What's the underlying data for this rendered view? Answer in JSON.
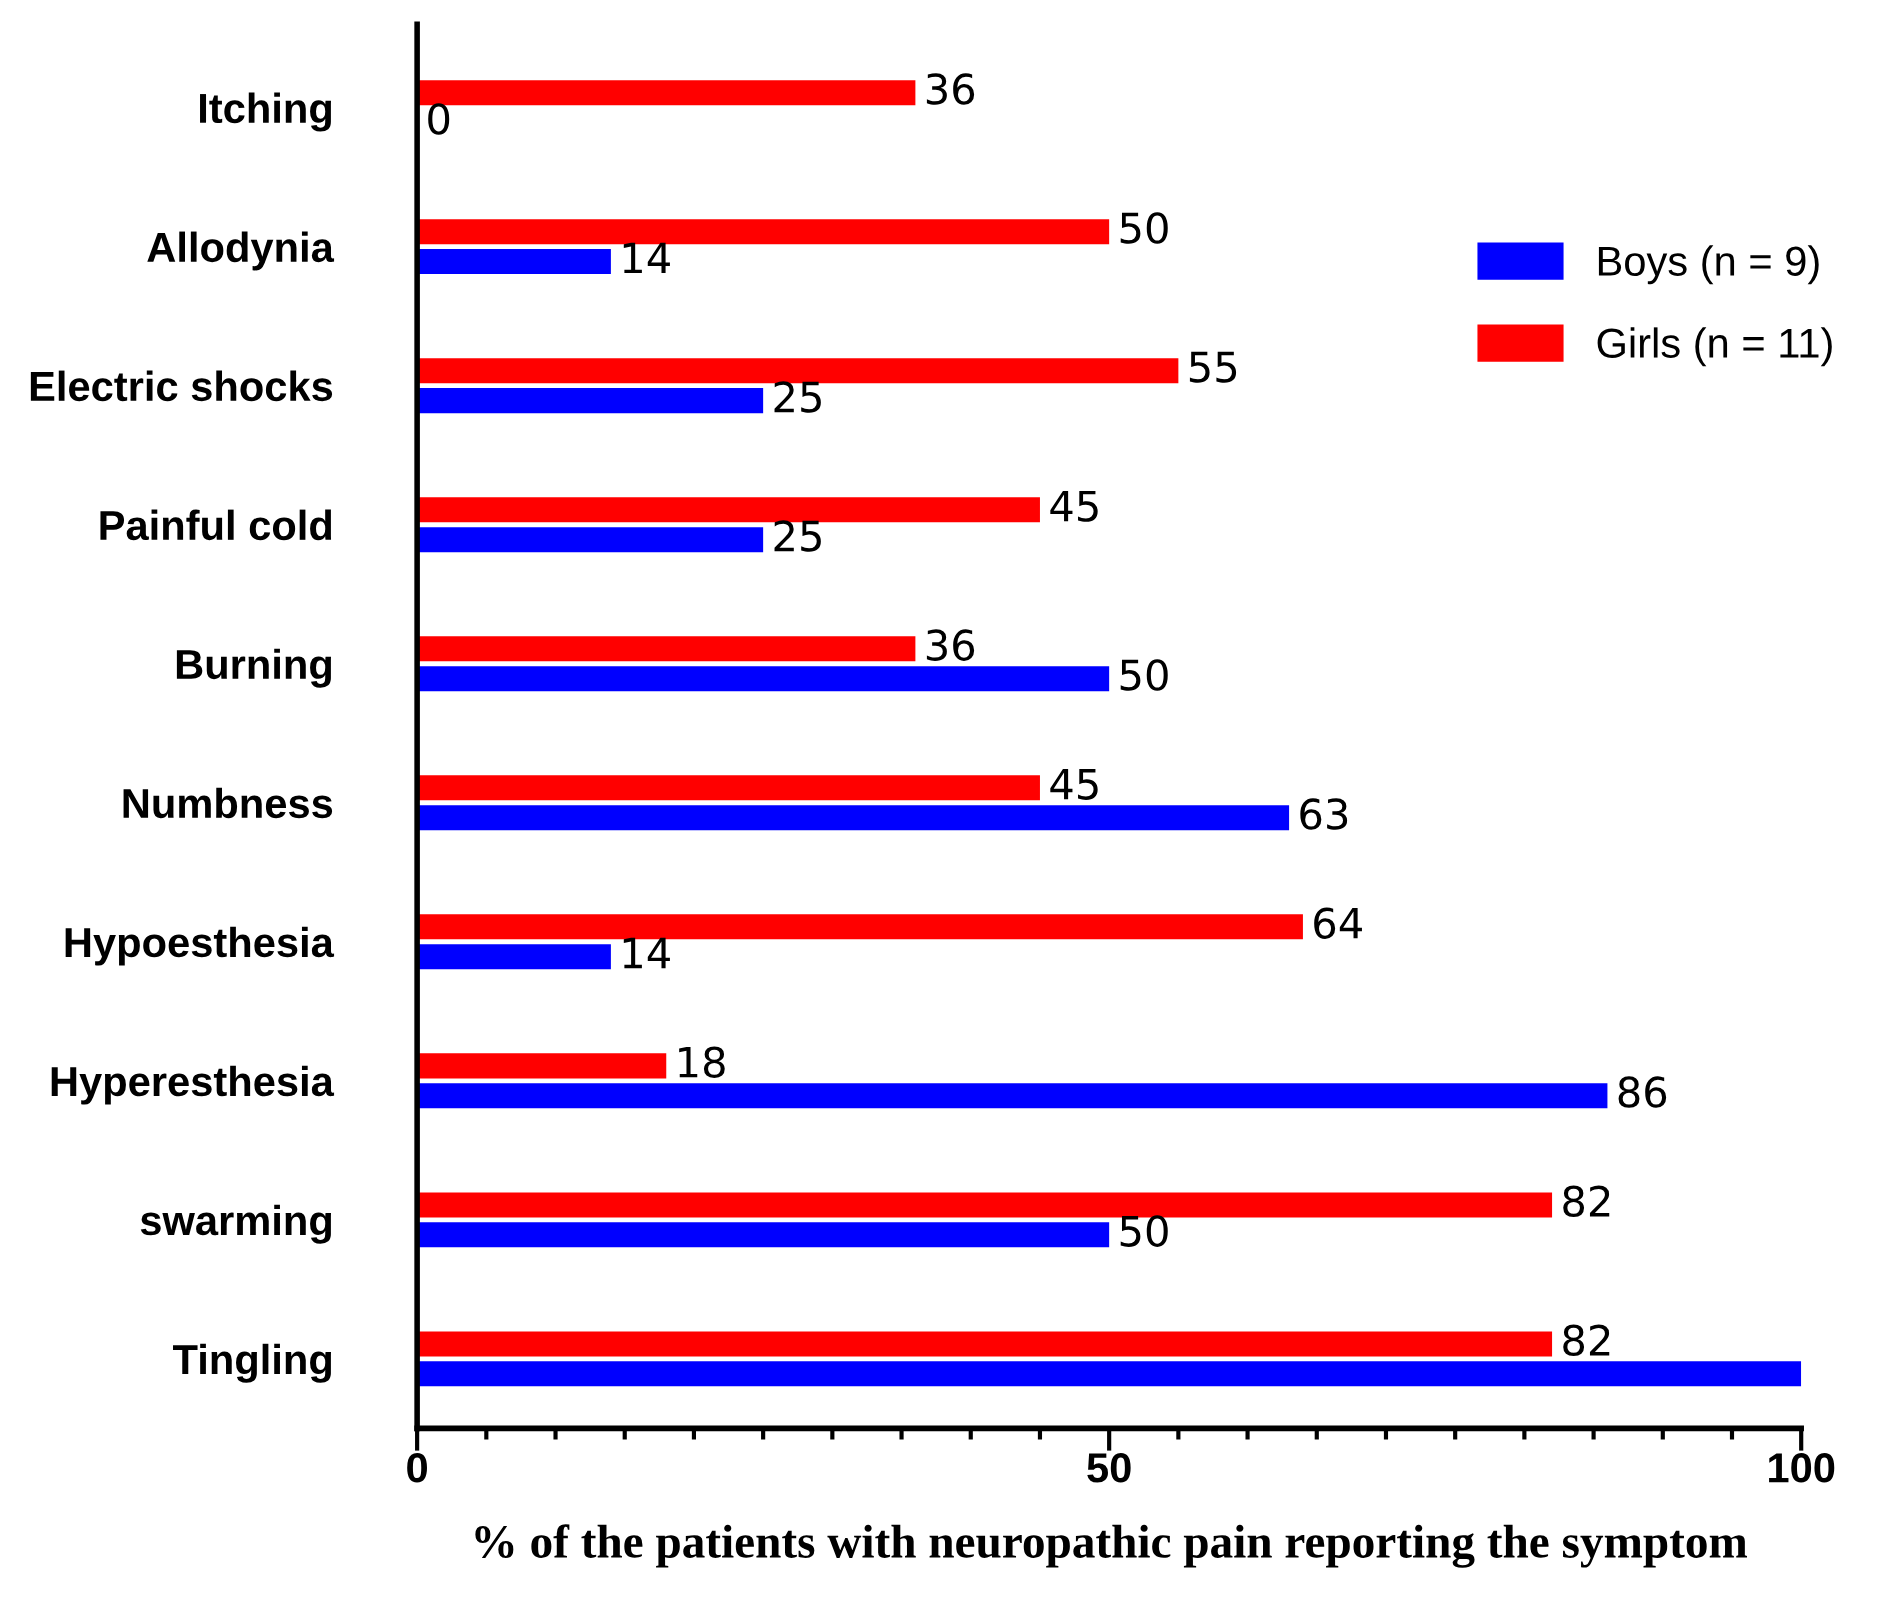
{
  "chart_data": {
    "type": "bar",
    "orientation": "horizontal",
    "xlabel": "% of the patients with neuropathic pain reporting the symptom",
    "categories": [
      "Itching",
      "Allodynia",
      "Electric shocks",
      "Painful cold",
      "Burning",
      "Numbness",
      "Hypoesthesia",
      "Hyperesthesia",
      "swarming",
      "Tingling"
    ],
    "series": [
      {
        "name": "Girls (n = 11)",
        "color": "#ff0000",
        "values": [
          36,
          50,
          55,
          45,
          36,
          45,
          64,
          18,
          82,
          82
        ],
        "value_labels": [
          "36",
          "50",
          "55",
          "45",
          "36",
          "45",
          "64",
          "18",
          "82",
          "82"
        ]
      },
      {
        "name": "Boys (n = 9)",
        "color": "#0000ff",
        "values": [
          0,
          14,
          25,
          25,
          50,
          63,
          14,
          86,
          50,
          100
        ],
        "value_labels": [
          "0",
          "14",
          "25",
          "25",
          "50",
          "63",
          "14",
          "86",
          "50",
          null
        ]
      }
    ],
    "xlim": [
      0,
      100
    ],
    "xticks": [
      0,
      {
        "value": 5,
        "label": null
      },
      {
        "value": 10,
        "label": null
      },
      {
        "value": 15,
        "label": null
      },
      {
        "value": 20,
        "label": null
      },
      {
        "value": 25,
        "label": null
      },
      {
        "value": 30,
        "label": null
      },
      {
        "value": 35,
        "label": null
      },
      {
        "value": 40,
        "label": null
      },
      {
        "value": 45,
        "label": null
      },
      50,
      {
        "value": 55,
        "label": null
      },
      {
        "value": 60,
        "label": null
      },
      {
        "value": 65,
        "label": null
      },
      {
        "value": 70,
        "label": null
      },
      {
        "value": 75,
        "label": null
      },
      {
        "value": 80,
        "label": null
      },
      {
        "value": 85,
        "label": null
      },
      {
        "value": 90,
        "label": null
      },
      {
        "value": 95,
        "label": null
      },
      100
    ],
    "legend": "right",
    "grid": false
  }
}
